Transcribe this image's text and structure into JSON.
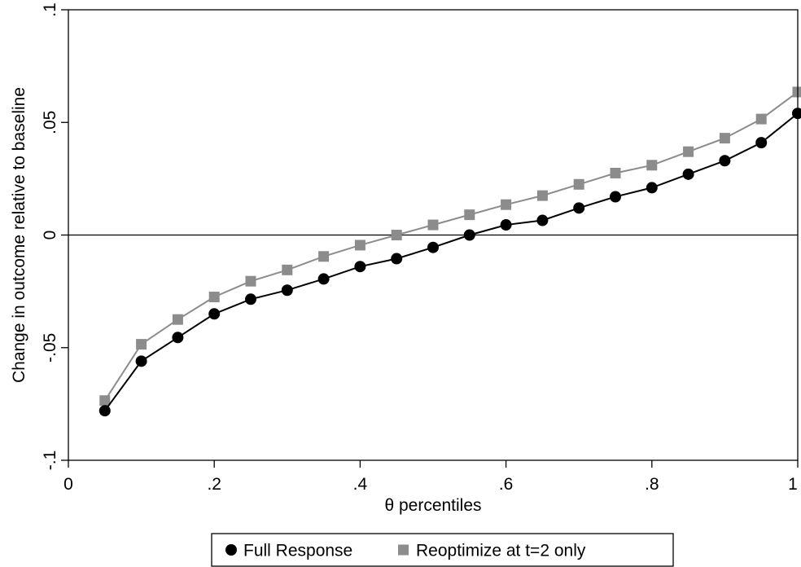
{
  "chart_data": {
    "type": "line",
    "title": "",
    "xlabel": "θ percentiles",
    "ylabel": "Change in outcome relative to baseline",
    "xlim": [
      0,
      1
    ],
    "ylim": [
      -0.1,
      0.1
    ],
    "x_ticks": [
      0,
      0.2,
      0.4,
      0.6,
      0.8,
      1
    ],
    "x_tick_labels": [
      "0",
      ".2",
      ".4",
      ".6",
      ".8",
      "1"
    ],
    "y_ticks": [
      -0.1,
      -0.05,
      0,
      0.05,
      0.1
    ],
    "y_tick_labels": [
      "-.1",
      "-.05",
      "0",
      ".05",
      ".1"
    ],
    "reference_line_y": 0,
    "grid": false,
    "legend_position": "bottom",
    "x": [
      0.05,
      0.1,
      0.15,
      0.2,
      0.25,
      0.3,
      0.35,
      0.4,
      0.45,
      0.5,
      0.55,
      0.6,
      0.65,
      0.7,
      0.75,
      0.8,
      0.85,
      0.9,
      0.95,
      1.0
    ],
    "series": [
      {
        "name": "Full Response",
        "marker": "circle",
        "color": "#000000",
        "values": [
          -0.078,
          -0.056,
          -0.0455,
          -0.035,
          -0.0285,
          -0.0245,
          -0.0195,
          -0.014,
          -0.0105,
          -0.0055,
          0.0,
          0.0045,
          0.0065,
          0.012,
          0.017,
          0.021,
          0.027,
          0.033,
          0.041,
          0.054
        ]
      },
      {
        "name": "Reoptimize at t=2 only",
        "marker": "square",
        "color": "#8c8c8c",
        "values": [
          -0.0735,
          -0.0485,
          -0.0375,
          -0.0275,
          -0.0205,
          -0.0155,
          -0.0095,
          -0.0045,
          0.0,
          0.0045,
          0.009,
          0.0135,
          0.0175,
          0.0225,
          0.0275,
          0.031,
          0.037,
          0.043,
          0.0515,
          0.0635
        ]
      }
    ]
  }
}
